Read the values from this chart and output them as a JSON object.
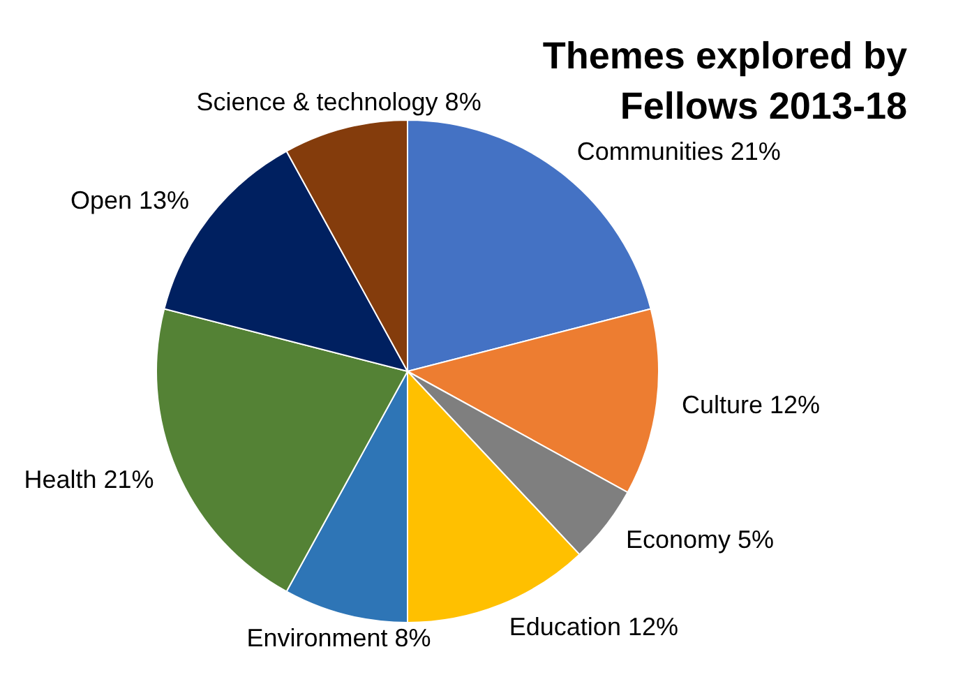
{
  "chart_data": {
    "type": "pie",
    "title": "Themes explored by Fellows 2013-18",
    "categories": [
      "Communities",
      "Culture",
      "Economy",
      "Education",
      "Environment",
      "Health",
      "Open",
      "Science & technology"
    ],
    "values": [
      21,
      12,
      5,
      12,
      8,
      21,
      13,
      8
    ],
    "value_labels": [
      "21%",
      "12%",
      "5%",
      "12%",
      "8%",
      "21%",
      "13%",
      "8%"
    ],
    "colors": [
      "#4472c4",
      "#ed7d31",
      "#7f7f7f",
      "#ffc000",
      "#2e75b6",
      "#548235",
      "#002060",
      "#843c0c"
    ]
  }
}
